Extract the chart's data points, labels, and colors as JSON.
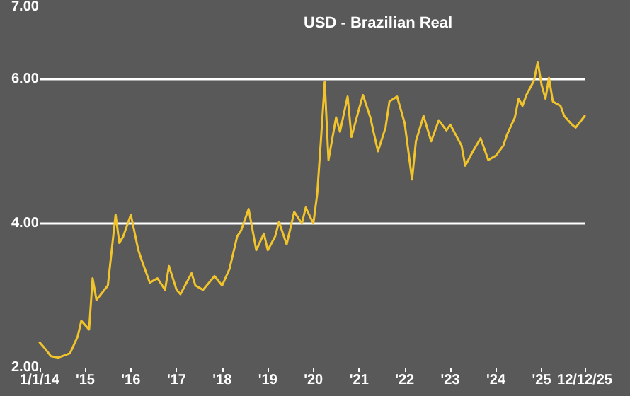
{
  "chart_data": {
    "type": "line",
    "title": "USD - Brazilian Real",
    "x": [
      "2014-01",
      "2014-02",
      "2014-04",
      "2014-06",
      "2014-09",
      "2014-11",
      "2014-12",
      "2015-02",
      "2015-03",
      "2015-04",
      "2015-07",
      "2015-08",
      "2015-09",
      "2015-10",
      "2015-11",
      "2016-01",
      "2016-03",
      "2016-04",
      "2016-06",
      "2016-08",
      "2016-10",
      "2016-11",
      "2017-01",
      "2017-02",
      "2017-05",
      "2017-06",
      "2017-08",
      "2017-11",
      "2018-01",
      "2018-03",
      "2018-05",
      "2018-06",
      "2018-08",
      "2018-10",
      "2018-12",
      "2019-01",
      "2019-03",
      "2019-04",
      "2019-06",
      "2019-08",
      "2019-10",
      "2019-11",
      "2020-01",
      "2020-02",
      "2020-03",
      "2020-04",
      "2020-05",
      "2020-07",
      "2020-08",
      "2020-10",
      "2020-11",
      "2021-01",
      "2021-02",
      "2021-04",
      "2021-06",
      "2021-08",
      "2021-09",
      "2021-11",
      "2022-01",
      "2022-03",
      "2022-04",
      "2022-06",
      "2022-08",
      "2022-10",
      "2022-12",
      "2023-01",
      "2023-04",
      "2023-05",
      "2023-07",
      "2023-09",
      "2023-11",
      "2024-01",
      "2024-03",
      "2024-04",
      "2024-06",
      "2024-07",
      "2024-08",
      "2024-09",
      "2024-11",
      "2024-12",
      "2025-01",
      "2025-02",
      "2025-03",
      "2025-04",
      "2025-06",
      "2025-07",
      "2025-09",
      "2025-10",
      "2025-12-12"
    ],
    "series": [
      {
        "color": "#f2c42c",
        "values": [
          2.35,
          2.29,
          2.16,
          2.14,
          2.2,
          2.43,
          2.65,
          2.53,
          3.24,
          2.94,
          3.14,
          3.63,
          4.12,
          3.73,
          3.82,
          4.12,
          3.63,
          3.47,
          3.18,
          3.24,
          3.08,
          3.41,
          3.08,
          3.02,
          3.31,
          3.14,
          3.08,
          3.27,
          3.14,
          3.37,
          3.82,
          3.9,
          4.2,
          3.63,
          3.86,
          3.63,
          3.82,
          4.02,
          3.71,
          4.16,
          4.0,
          4.22,
          4.0,
          4.41,
          5.14,
          5.96,
          4.88,
          5.47,
          5.27,
          5.76,
          5.2,
          5.59,
          5.78,
          5.47,
          5.0,
          5.33,
          5.69,
          5.76,
          5.39,
          4.61,
          5.14,
          5.49,
          5.14,
          5.43,
          5.29,
          5.37,
          5.08,
          4.8,
          5.0,
          5.18,
          4.88,
          4.94,
          5.08,
          5.24,
          5.47,
          5.73,
          5.63,
          5.78,
          5.98,
          6.24,
          5.92,
          5.73,
          6.02,
          5.69,
          5.63,
          5.49,
          5.37,
          5.33,
          5.49
        ]
      }
    ],
    "xlim": [
      "2014-01-01",
      "2025-12-12"
    ],
    "xticks": [
      {
        "value": "2014-01-01",
        "label": "1/1/14"
      },
      {
        "value": "2015-01-01",
        "label": "'15"
      },
      {
        "value": "2016-01-01",
        "label": "'16"
      },
      {
        "value": "2017-01-01",
        "label": "'17"
      },
      {
        "value": "2018-01-01",
        "label": "'18"
      },
      {
        "value": "2019-01-01",
        "label": "'19"
      },
      {
        "value": "2020-01-01",
        "label": "'20"
      },
      {
        "value": "2021-01-01",
        "label": "'21"
      },
      {
        "value": "2022-01-01",
        "label": "'22"
      },
      {
        "value": "2023-01-01",
        "label": "'23"
      },
      {
        "value": "2024-01-01",
        "label": "'24"
      },
      {
        "value": "2025-01-01",
        "label": "'25"
      },
      {
        "value": "2025-12-12",
        "label": "12/12/25"
      }
    ],
    "ylim": [
      2,
      7
    ],
    "yticks": [
      {
        "value": 2,
        "label": "2.00"
      },
      {
        "value": 4,
        "label": "4.00"
      },
      {
        "value": 6,
        "label": "6.00"
      },
      {
        "value": 7,
        "label": "7.00"
      }
    ],
    "grid": "y",
    "marker": "none",
    "line_style": "solid"
  }
}
